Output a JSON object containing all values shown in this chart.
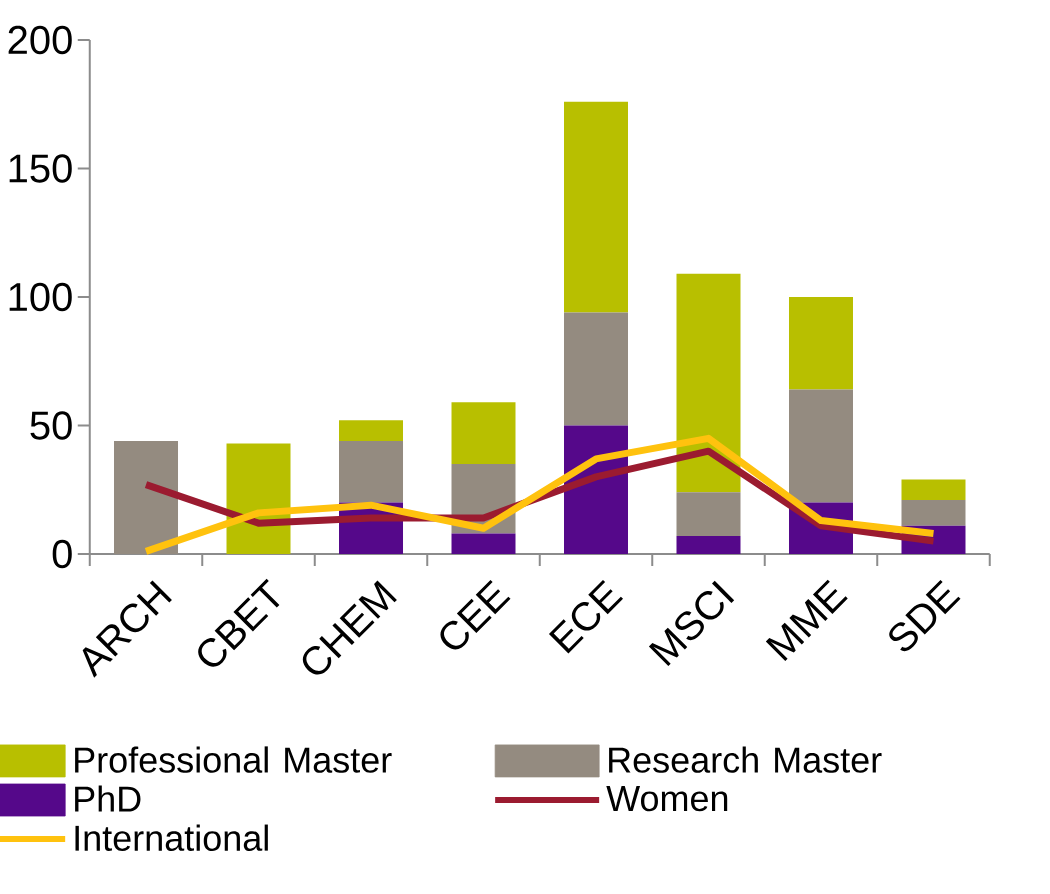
{
  "chart_data": {
    "type": "bar",
    "stacked": true,
    "categories": [
      "ARCH",
      "CBET",
      "CHEM",
      "CEE",
      "ECE",
      "MSCI",
      "MME",
      "SDE"
    ],
    "series": [
      {
        "name": "PhD",
        "color": "#55088a",
        "values": [
          0,
          0,
          20,
          8,
          50,
          7,
          20,
          11
        ]
      },
      {
        "name": "Research Master",
        "color": "#948b80",
        "values": [
          44,
          0,
          24,
          27,
          44,
          17,
          44,
          10
        ]
      },
      {
        "name": "Professional Master",
        "color": "#b8bf00",
        "values": [
          0,
          43,
          8,
          24,
          82,
          85,
          36,
          8
        ]
      },
      {
        "name": "Women",
        "type": "line",
        "color": "#9b1b30",
        "values": [
          27,
          12,
          14,
          14,
          30,
          40,
          11,
          5
        ]
      },
      {
        "name": "International",
        "type": "line",
        "color": "#ffc20e",
        "values": [
          1,
          16,
          19,
          10,
          37,
          45,
          13,
          8
        ]
      }
    ],
    "ylim": [
      0,
      200
    ],
    "yticks": [
      0,
      50,
      100,
      150,
      200
    ],
    "legend": "bottom"
  }
}
